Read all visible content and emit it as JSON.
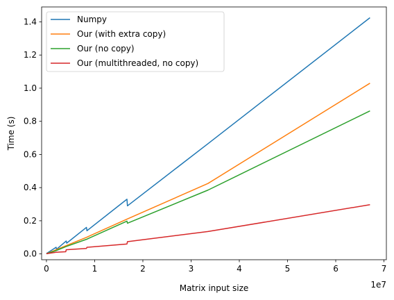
{
  "chart_data": {
    "type": "line",
    "title": "",
    "xlabel": "Matrix input size",
    "ylabel": "Time (s)",
    "x_offset_text": "1e7",
    "xlim": [
      -1000000,
      70500000
    ],
    "ylim": [
      -0.035,
      1.49
    ],
    "x_ticks": [
      0,
      10000000,
      20000000,
      30000000,
      40000000,
      50000000,
      60000000,
      70000000
    ],
    "x_tick_labels": [
      "0",
      "1",
      "2",
      "3",
      "4",
      "5",
      "6",
      "7"
    ],
    "y_ticks": [
      0.0,
      0.2,
      0.4,
      0.6,
      0.8,
      1.0,
      1.2,
      1.4
    ],
    "y_tick_labels": [
      "0.0",
      "0.2",
      "0.4",
      "0.6",
      "0.8",
      "1.0",
      "1.2",
      "1.4"
    ],
    "grid": false,
    "legend_position": "top-left",
    "series": [
      {
        "name": "Numpy",
        "color": "#1f77b4",
        "points": [
          [
            0,
            0.002
          ],
          [
            2000000,
            0.04
          ],
          [
            2100000,
            0.028
          ],
          [
            4100000,
            0.078
          ],
          [
            4200000,
            0.065
          ],
          [
            8300000,
            0.16
          ],
          [
            8400000,
            0.14
          ],
          [
            16700000,
            0.33
          ],
          [
            16800000,
            0.29
          ],
          [
            33500000,
            0.665
          ],
          [
            67100000,
            1.425
          ]
        ]
      },
      {
        "name": "Our (with extra copy)",
        "color": "#ff7f0e",
        "points": [
          [
            0,
            0.001
          ],
          [
            2000000,
            0.025
          ],
          [
            4100000,
            0.05
          ],
          [
            8300000,
            0.1
          ],
          [
            16700000,
            0.21
          ],
          [
            33500000,
            0.425
          ],
          [
            67100000,
            1.03
          ]
        ]
      },
      {
        "name": "Our (no copy)",
        "color": "#2ca02c",
        "points": [
          [
            0,
            0.001
          ],
          [
            2000000,
            0.02
          ],
          [
            4100000,
            0.045
          ],
          [
            8300000,
            0.088
          ],
          [
            16700000,
            0.198
          ],
          [
            16800000,
            0.185
          ],
          [
            33500000,
            0.385
          ],
          [
            67100000,
            0.863
          ]
        ]
      },
      {
        "name": "Our (multithreaded, no copy)",
        "color": "#d62728",
        "points": [
          [
            0,
            0.001
          ],
          [
            2000000,
            0.01
          ],
          [
            4000000,
            0.013
          ],
          [
            4100000,
            0.025
          ],
          [
            8300000,
            0.033
          ],
          [
            8400000,
            0.04
          ],
          [
            16700000,
            0.06
          ],
          [
            16800000,
            0.074
          ],
          [
            33500000,
            0.135
          ],
          [
            67100000,
            0.297
          ]
        ]
      }
    ]
  }
}
